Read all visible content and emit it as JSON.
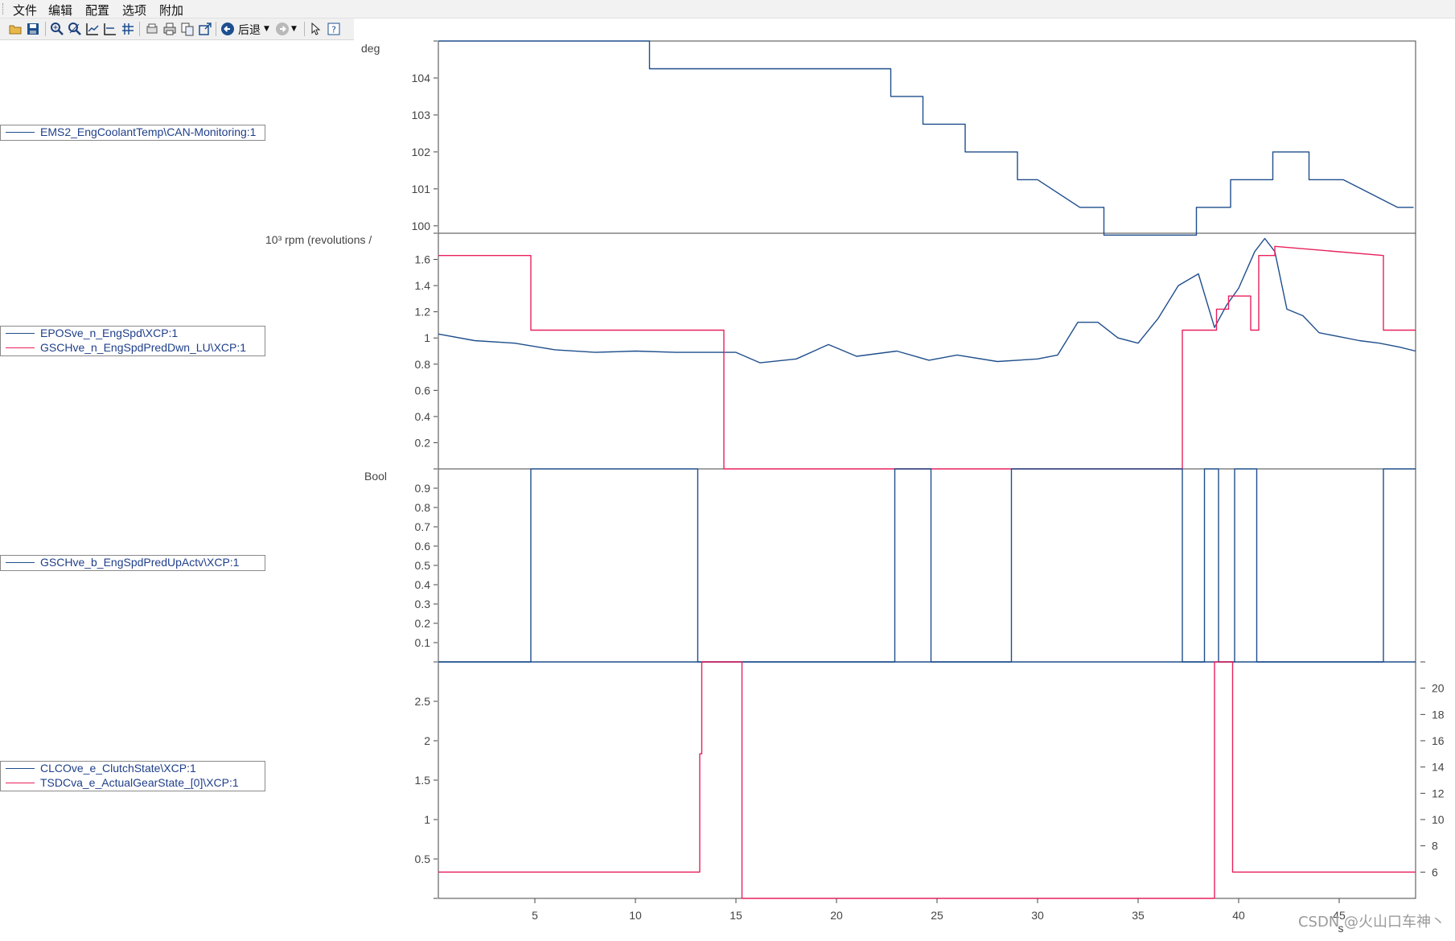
{
  "menu": {
    "items": [
      "文件",
      "编辑",
      "配置",
      "选项",
      "附加"
    ]
  },
  "toolbar": {
    "back_label": "后退"
  },
  "colors": {
    "blue": "#1f4e8c",
    "red": "#e8215d",
    "axis": "#444444"
  },
  "legends": [
    {
      "entries": [
        {
          "name": "EMS2_EngCoolantTemp\\CAN-Monitoring:1",
          "color": "#1f4e8c"
        }
      ]
    },
    {
      "entries": [
        {
          "name": "EPOSve_n_EngSpd\\XCP:1",
          "color": "#1f4e8c"
        },
        {
          "name": "GSCHve_n_EngSpdPredDwn_LU\\XCP:1",
          "color": "#e8215d"
        }
      ]
    },
    {
      "entries": [
        {
          "name": "GSCHve_b_EngSpdPredUpActv\\XCP:1",
          "color": "#1f4e8c"
        }
      ]
    },
    {
      "entries": [
        {
          "name": "CLCOve_e_ClutchState\\XCP:1",
          "color": "#1f4e8c"
        },
        {
          "name": "TSDCva_e_ActualGearState_[0]\\XCP:1",
          "color": "#e8215d"
        }
      ]
    }
  ],
  "units": [
    "deg",
    "10³ rpm (revolutions /",
    "Bool"
  ],
  "xaxis": {
    "ticks": [
      5,
      10,
      15,
      20,
      25,
      30,
      35,
      40,
      45
    ],
    "unit": "s",
    "range": [
      0.2,
      48.8
    ]
  },
  "chart_data": [
    {
      "type": "line",
      "ylim": [
        99.8,
        105.0
      ],
      "yticks": [
        100,
        101,
        102,
        103,
        104
      ],
      "series": [
        {
          "name": "EMS2_EngCoolantTemp\\CAN-Monitoring:1",
          "color": "#1f4e8c",
          "x": [
            0.2,
            10.7,
            10.7,
            22.7,
            22.7,
            24.3,
            24.3,
            26.4,
            26.4,
            29.0,
            29.0,
            30.0,
            32.1,
            33.3,
            33.3,
            37.9,
            37.9,
            39.6,
            39.6,
            41.7,
            41.7,
            43.5,
            43.5,
            45.2,
            47.9,
            48.7
          ],
          "y": [
            105.0,
            105.0,
            104.25,
            104.25,
            103.5,
            103.5,
            102.75,
            102.75,
            102.0,
            102.0,
            101.25,
            101.25,
            100.5,
            100.5,
            99.75,
            99.75,
            100.5,
            100.5,
            101.25,
            101.25,
            102.0,
            102.0,
            101.25,
            101.25,
            100.5,
            100.5
          ]
        }
      ]
    },
    {
      "type": "line",
      "ylim": [
        0.0,
        1.8
      ],
      "yticks": [
        0.2,
        0.4,
        0.6,
        0.8,
        1.0,
        1.2,
        1.4,
        1.6
      ],
      "series": [
        {
          "name": "EPOSve_n_EngSpd\\XCP:1",
          "color": "#1f4e8c",
          "x": [
            0.2,
            2,
            4,
            6,
            8,
            10,
            12,
            14,
            15,
            16.2,
            18,
            19.6,
            21,
            23,
            24.6,
            26,
            28,
            30,
            31,
            32,
            33,
            34,
            35,
            36,
            37,
            38,
            38.8,
            39.4,
            40,
            40.8,
            41.3,
            41.8,
            42.4,
            43.2,
            44,
            45,
            46,
            47,
            48,
            48.8
          ],
          "y": [
            1.03,
            0.98,
            0.96,
            0.91,
            0.89,
            0.9,
            0.89,
            0.89,
            0.89,
            0.81,
            0.84,
            0.95,
            0.86,
            0.9,
            0.83,
            0.87,
            0.82,
            0.84,
            0.87,
            1.12,
            1.12,
            1.0,
            0.96,
            1.15,
            1.4,
            1.49,
            1.08,
            1.25,
            1.38,
            1.66,
            1.76,
            1.66,
            1.22,
            1.17,
            1.04,
            1.01,
            0.98,
            0.96,
            0.93,
            0.9
          ]
        },
        {
          "name": "GSCHve_n_EngSpdPredDwn_LU\\XCP:1",
          "color": "#e8215d",
          "x": [
            0.2,
            4.8,
            4.8,
            14.4,
            14.4,
            37.2,
            37.2,
            38.9,
            38.9,
            39.5,
            39.5,
            40.6,
            40.6,
            41.0,
            41.0,
            41.8,
            41.8,
            47.2,
            47.2,
            48.8
          ],
          "y": [
            1.63,
            1.63,
            1.06,
            1.06,
            0.0,
            0.0,
            1.06,
            1.06,
            1.22,
            1.22,
            1.32,
            1.32,
            1.06,
            1.06,
            1.63,
            1.63,
            1.7,
            1.63,
            1.06,
            1.06
          ]
        }
      ]
    },
    {
      "type": "line",
      "ylim": [
        0.0,
        1.0
      ],
      "yticks": [
        0.1,
        0.2,
        0.3,
        0.4,
        0.5,
        0.6,
        0.7,
        0.8,
        0.9
      ],
      "series": [
        {
          "name": "GSCHve_b_EngSpdPredUpActv\\XCP:1",
          "color": "#1f4e8c",
          "x": [
            0.2,
            4.8,
            4.8,
            13.1,
            13.1,
            22.9,
            22.9,
            24.7,
            24.7,
            28.7,
            28.7,
            37.2,
            37.2,
            38.3,
            38.3,
            39.0,
            39.0,
            39.8,
            39.8,
            40.9,
            40.9,
            47.2,
            47.2,
            48.8
          ],
          "y": [
            0,
            0,
            1,
            1,
            0,
            0,
            1,
            1,
            0,
            0,
            1,
            1,
            0,
            0,
            1,
            1,
            0,
            0,
            1,
            1,
            0,
            0,
            1,
            1
          ]
        }
      ]
    },
    {
      "type": "line",
      "ylim": [
        0.0,
        3.0
      ],
      "yticks": [
        0.5,
        1.0,
        1.5,
        2.0,
        2.5
      ],
      "y2lim": [
        4.0,
        22.0
      ],
      "y2ticks": [
        6,
        8,
        10,
        12,
        14,
        16,
        18,
        20
      ],
      "series": [
        {
          "name": "CLCOve_e_ClutchState\\XCP:1",
          "color": "#1f4e8c",
          "x": [
            0.2,
            48.8
          ],
          "y": [
            3.0,
            3.0
          ]
        },
        {
          "name": "TSDCva_e_ActualGearState_[0]\\XCP:1",
          "color": "#e8215d",
          "axis": "y2",
          "x": [
            0.2,
            13.2,
            13.2,
            13.3,
            13.3,
            15.3,
            15.3,
            38.8,
            38.8,
            39.7,
            39.7,
            48.8
          ],
          "y": [
            6.0,
            6.0,
            15.0,
            15.0,
            22.0,
            22.0,
            4.0,
            4.0,
            22.0,
            22.0,
            6.0,
            6.0
          ]
        }
      ]
    }
  ],
  "watermark": "CSDN @火山口车神丶"
}
